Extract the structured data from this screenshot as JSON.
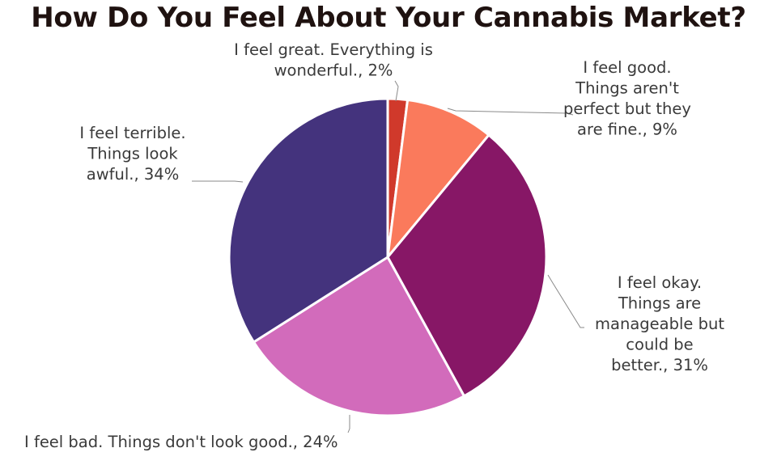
{
  "chart_data": {
    "type": "pie",
    "title": "How Do You Feel About Your Cannabis Market?",
    "slices": [
      {
        "label_lines": [
          "I feel great. Everything is",
          "wonderful., 2%"
        ],
        "value": 2,
        "color": "#d0392b"
      },
      {
        "label_lines": [
          "I feel good.",
          "Things aren't",
          "perfect but they",
          "are fine., 9%"
        ],
        "value": 9,
        "color": "#fa7a5c"
      },
      {
        "label_lines": [
          "I feel okay.",
          "Things are",
          "manageable but",
          "could be",
          "better., 31%"
        ],
        "value": 31,
        "color": "#871766"
      },
      {
        "label_lines": [
          "I feel bad. Things don't look good., 24%"
        ],
        "value": 24,
        "color": "#d26bbb"
      },
      {
        "label_lines": [
          "I feel terrible.",
          "Things look",
          "awful., 34%"
        ],
        "value": 34,
        "color": "#44337d"
      }
    ]
  }
}
